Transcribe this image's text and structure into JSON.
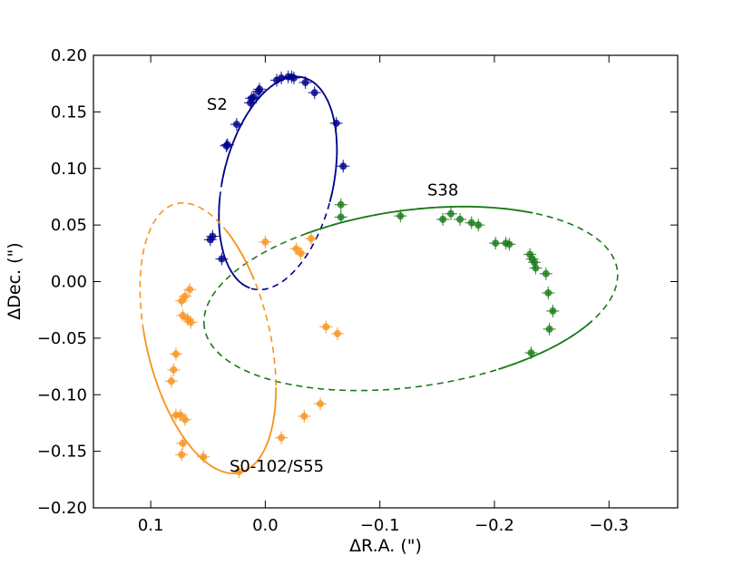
{
  "chart_data": {
    "type": "scatter",
    "title": "",
    "xlabel": "ΔR.A. (\")",
    "ylabel": "ΔDec. (\")",
    "xlim": [
      0.15,
      -0.36
    ],
    "ylim": [
      -0.2,
      0.2
    ],
    "x_ticks": [
      0.1,
      0.0,
      -0.1,
      -0.2,
      -0.3
    ],
    "x_tick_labels": [
      "0.1",
      "0.0",
      "−0.1",
      "−0.2",
      "−0.3"
    ],
    "y_ticks": [
      0.2,
      0.15,
      0.1,
      0.05,
      0.0,
      -0.05,
      -0.1,
      -0.15,
      -0.2
    ],
    "y_tick_labels": [
      "0.20",
      "0.15",
      "0.10",
      "0.05",
      "0.00",
      "−0.05",
      "−0.10",
      "−0.15",
      "−0.20"
    ],
    "grid": false,
    "series": [
      {
        "name": "S2",
        "label": "S2",
        "color": "#00008b",
        "orbit_center": [
          -0.011,
          0.087
        ],
        "orbit_semi_axes": [
          0.048,
          0.096
        ],
        "orbit_rotation_deg": 13,
        "points": [
          [
            0.038,
            0.02
          ],
          [
            0.048,
            0.037
          ],
          [
            0.046,
            0.04
          ],
          [
            0.034,
            0.12
          ],
          [
            0.033,
            0.121
          ],
          [
            0.025,
            0.139
          ],
          [
            0.013,
            0.158
          ],
          [
            0.012,
            0.162
          ],
          [
            0.01,
            0.163
          ],
          [
            0.006,
            0.168
          ],
          [
            0.005,
            0.17
          ],
          [
            -0.01,
            0.178
          ],
          [
            -0.014,
            0.18
          ],
          [
            -0.02,
            0.181
          ],
          [
            -0.023,
            0.181
          ],
          [
            -0.025,
            0.18
          ],
          [
            -0.035,
            0.176
          ],
          [
            -0.043,
            0.167
          ],
          [
            -0.062,
            0.14
          ],
          [
            -0.068,
            0.102
          ]
        ]
      },
      {
        "name": "S38",
        "label": "S38",
        "color": "#1a7a1a",
        "orbit_center": [
          -0.127,
          -0.015
        ],
        "orbit_semi_axes": [
          0.182,
          0.078
        ],
        "orbit_rotation_deg": -8,
        "points": [
          [
            -0.066,
            0.068
          ],
          [
            -0.066,
            0.057
          ],
          [
            -0.118,
            0.058
          ],
          [
            -0.155,
            0.055
          ],
          [
            -0.162,
            0.06
          ],
          [
            -0.17,
            0.055
          ],
          [
            -0.18,
            0.052
          ],
          [
            -0.186,
            0.05
          ],
          [
            -0.201,
            0.034
          ],
          [
            -0.21,
            0.034
          ],
          [
            -0.213,
            0.033
          ],
          [
            -0.231,
            0.024
          ],
          [
            -0.233,
            0.02
          ],
          [
            -0.235,
            0.017
          ],
          [
            -0.236,
            0.012
          ],
          [
            -0.245,
            0.007
          ],
          [
            -0.247,
            -0.01
          ],
          [
            -0.251,
            -0.026
          ],
          [
            -0.248,
            -0.042
          ],
          [
            -0.232,
            -0.063
          ]
        ]
      },
      {
        "name": "S0-102/S55",
        "label": "S0-102/S55",
        "color": "#f7941d",
        "orbit_center": [
          0.05,
          -0.05
        ],
        "orbit_semi_axes": [
          0.054,
          0.122
        ],
        "orbit_rotation_deg": -13,
        "points": [
          [
            0.0,
            0.035
          ],
          [
            -0.027,
            0.029
          ],
          [
            -0.031,
            0.025
          ],
          [
            -0.04,
            0.038
          ],
          [
            0.066,
            -0.007
          ],
          [
            0.07,
            -0.013
          ],
          [
            0.073,
            -0.017
          ],
          [
            0.072,
            -0.03
          ],
          [
            0.068,
            -0.033
          ],
          [
            0.065,
            -0.036
          ],
          [
            0.078,
            -0.064
          ],
          [
            0.08,
            -0.078
          ],
          [
            0.082,
            -0.088
          ],
          [
            0.078,
            -0.118
          ],
          [
            0.074,
            -0.118
          ],
          [
            0.07,
            -0.122
          ],
          [
            0.072,
            -0.143
          ],
          [
            0.073,
            -0.153
          ],
          [
            0.054,
            -0.155
          ],
          [
            0.023,
            -0.168
          ],
          [
            -0.014,
            -0.138
          ],
          [
            -0.034,
            -0.119
          ],
          [
            -0.048,
            -0.108
          ],
          [
            -0.053,
            -0.04
          ],
          [
            -0.063,
            -0.046
          ]
        ]
      }
    ],
    "annotations": [
      {
        "text": "S2",
        "x": 0.042,
        "y": 0.152
      },
      {
        "text": "S38",
        "x": -0.155,
        "y": 0.076
      },
      {
        "text": "S0-102/S55",
        "x": -0.01,
        "y": -0.168
      }
    ]
  }
}
